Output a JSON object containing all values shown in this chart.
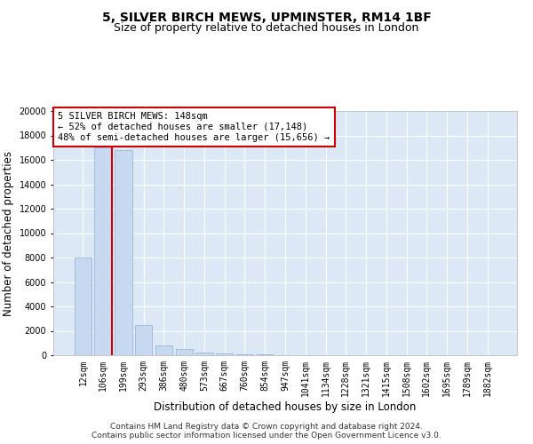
{
  "title": "5, SILVER BIRCH MEWS, UPMINSTER, RM14 1BF",
  "subtitle": "Size of property relative to detached houses in London",
  "xlabel": "Distribution of detached houses by size in London",
  "ylabel": "Number of detached properties",
  "bar_color": "#c6d9f0",
  "bar_edge_color": "#9ab8d8",
  "categories": [
    "12sqm",
    "106sqm",
    "199sqm",
    "293sqm",
    "386sqm",
    "480sqm",
    "573sqm",
    "667sqm",
    "760sqm",
    "854sqm",
    "947sqm",
    "1041sqm",
    "1134sqm",
    "1228sqm",
    "1321sqm",
    "1415sqm",
    "1508sqm",
    "1602sqm",
    "1695sqm",
    "1789sqm",
    "1882sqm"
  ],
  "values": [
    8000,
    17000,
    16800,
    2500,
    800,
    500,
    250,
    150,
    100,
    50,
    20,
    10,
    5,
    3,
    2,
    2,
    1,
    1,
    1,
    1,
    1
  ],
  "ylim": [
    0,
    20000
  ],
  "yticks": [
    0,
    2000,
    4000,
    6000,
    8000,
    10000,
    12000,
    14000,
    16000,
    18000,
    20000
  ],
  "annotation_text": "5 SILVER BIRCH MEWS: 148sqm\n← 52% of detached houses are smaller (17,148)\n48% of semi-detached houses are larger (15,656) →",
  "annotation_box_color": "#ffffff",
  "annotation_border_color": "#cc0000",
  "red_line_color": "#cc0000",
  "footer1": "Contains HM Land Registry data © Crown copyright and database right 2024.",
  "footer2": "Contains public sector information licensed under the Open Government Licence v3.0.",
  "title_fontsize": 10,
  "subtitle_fontsize": 9,
  "axis_label_fontsize": 8.5,
  "tick_fontsize": 7,
  "annotation_fontsize": 7.5,
  "footer_fontsize": 6.5,
  "bg_color": "#dce8f5",
  "grid_color": "#ffffff"
}
